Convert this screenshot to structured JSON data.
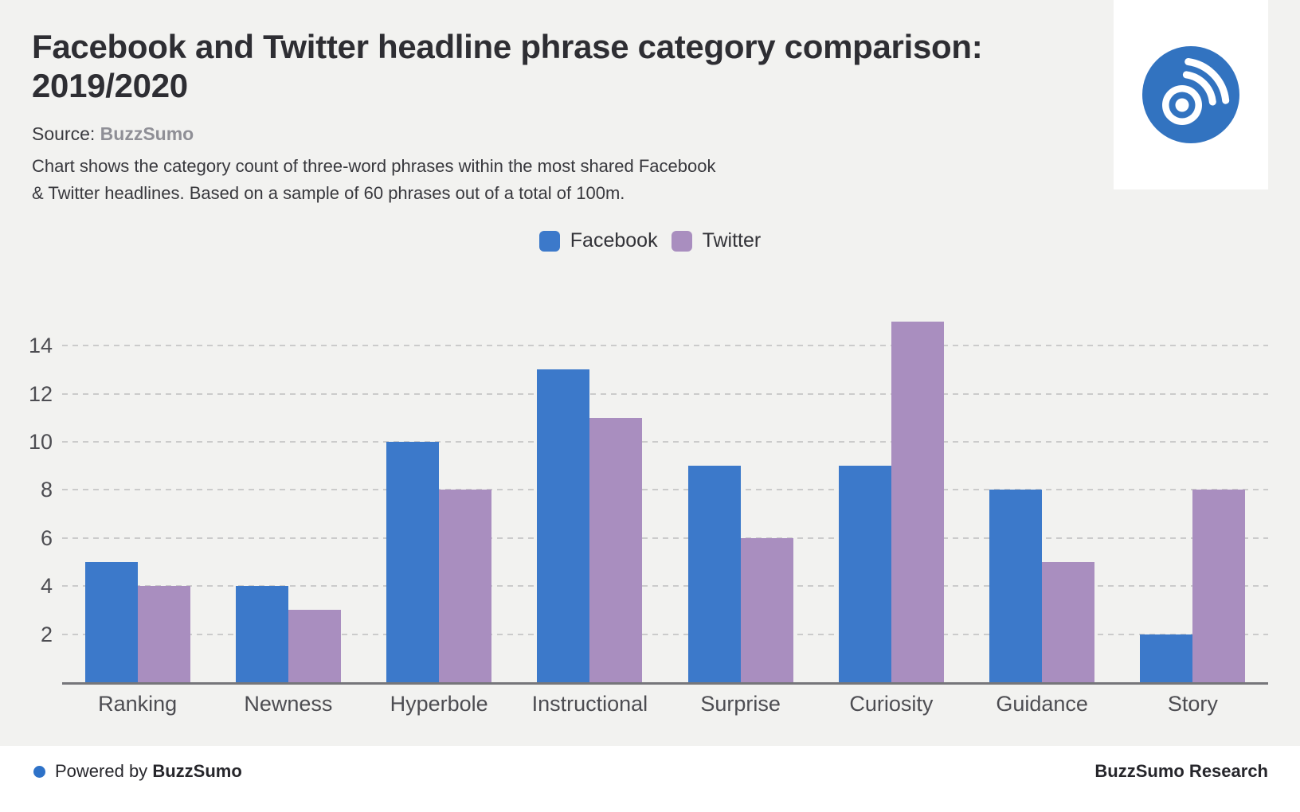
{
  "header": {
    "title_line1": "Facebook and Twitter headline phrase category comparison:",
    "title_line2": "2019/2020",
    "source_label": "Source:",
    "source_value": "BuzzSumo",
    "description_line1": "Chart shows the category count of three-word phrases within the most shared Facebook",
    "description_line2": "& Twitter headlines. Based on a sample of 60 phrases out of a total of 100m."
  },
  "chart_data": {
    "type": "bar",
    "title": "Facebook and Twitter headline phrase category comparison: 2019/2020",
    "categories": [
      "Ranking",
      "Newness",
      "Hyperbole",
      "Instructional",
      "Surprise",
      "Curiosity",
      "Guidance",
      "Story"
    ],
    "series": [
      {
        "name": "Facebook",
        "color": "#3c79ca",
        "values": [
          5,
          4,
          10,
          13,
          9,
          9,
          8,
          2
        ]
      },
      {
        "name": "Twitter",
        "color": "#a98ebf",
        "values": [
          4,
          3,
          8,
          11,
          6,
          15,
          5,
          8
        ]
      }
    ],
    "xlabel": "",
    "ylabel": "",
    "ylim": [
      0,
      15
    ],
    "yticks": [
      2,
      4,
      6,
      8,
      10,
      12,
      14
    ],
    "grid": "horizontal-dashed",
    "legend_position": "top-center"
  },
  "footer": {
    "powered_prefix": "Powered by",
    "powered_brand": "BuzzSumo",
    "right_text": "BuzzSumo Research"
  },
  "colors": {
    "page_background": "#f2f2f0",
    "card_background": "#ffffff",
    "facebook_blue": "#3c79ca",
    "twitter_purple": "#a98ebf",
    "logo_blue": "#3273c0",
    "gridline": "#cbcbcb",
    "axis": "#76767a",
    "footer_dot": "#2e72c8"
  }
}
